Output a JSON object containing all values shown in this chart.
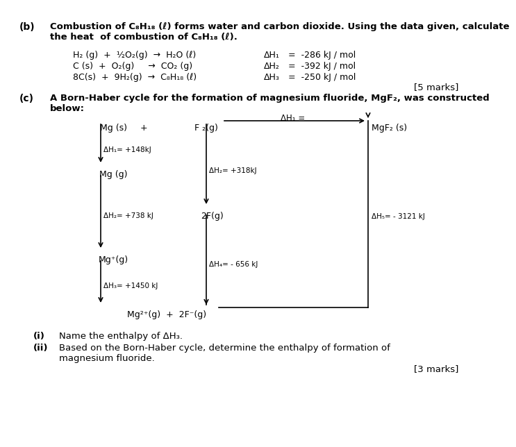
{
  "bg_color": "#ffffff",
  "fig_width": 6.9,
  "fig_height": 6.24,
  "part_b_label": "(b)",
  "part_b_text1": "Combustion of C₈H₁₈ (ℓ) forms water and carbon dioxide. Using the data given, calculate",
  "part_b_text2": "the heat  of combustion of C₈H₁₈ (ℓ).",
  "rxn1_eq": "H₂ (g)  +  ½O₂(g)  →  H₂O (ℓ)",
  "rxn2_eq": "C (s)  +  O₂(g)     →  CO₂ (g)",
  "rxn3_eq": "8C(s)  +  9H₂(g)  →  C₈H₁₈ (ℓ)",
  "rxn1_dh": "ΔH₁",
  "rxn2_dh": "ΔH₂",
  "rxn3_dh": "ΔH₃",
  "rxn1_val": "=  -286 kJ / mol",
  "rxn2_val": "=  -392 kJ / mol",
  "rxn3_val": "=  -250 kJ / mol",
  "marks_b": "[5 marks]",
  "part_c_label": "(c)",
  "part_c_text1": "A Born-Haber cycle for the formation of magnesium fluoride, MgF₂, was constructed",
  "part_c_text2": "below:",
  "dh_top_label": "ΔH₁ =",
  "mg_s_label": "Mg (s)",
  "plus_label": "+",
  "f2g_label": "F ₂(g)",
  "mgf2_label": "MgF₂ (s)",
  "mgg_label": "Mg (g)",
  "twofg_label": "2F(g)",
  "mgplus_label": "Mg⁺(g)",
  "mg2plus_label": "Mg²⁺(g)  +  2F⁻(g)",
  "dh1_side": "ΔH₁= +148kJ",
  "dh2_side": "ΔH₂= +318kJ",
  "dh3_side": "ΔH₂= +738 kJ",
  "dh4_side": "ΔH₃= +1450 kJ",
  "dh5_side": "ΔH₄= - 656 kJ",
  "dh6_side": "ΔH₅= - 3121 kJ",
  "part_ci_label": "(i)",
  "part_ci_text": "Name the enthalpy of ΔH₃.",
  "part_cii_label": "(ii)",
  "part_cii_text1": "Based on the Born-Haber cycle, determine the enthalpy of formation of",
  "part_cii_text2": "magnesium fluoride.",
  "marks_c": "[3 marks]"
}
